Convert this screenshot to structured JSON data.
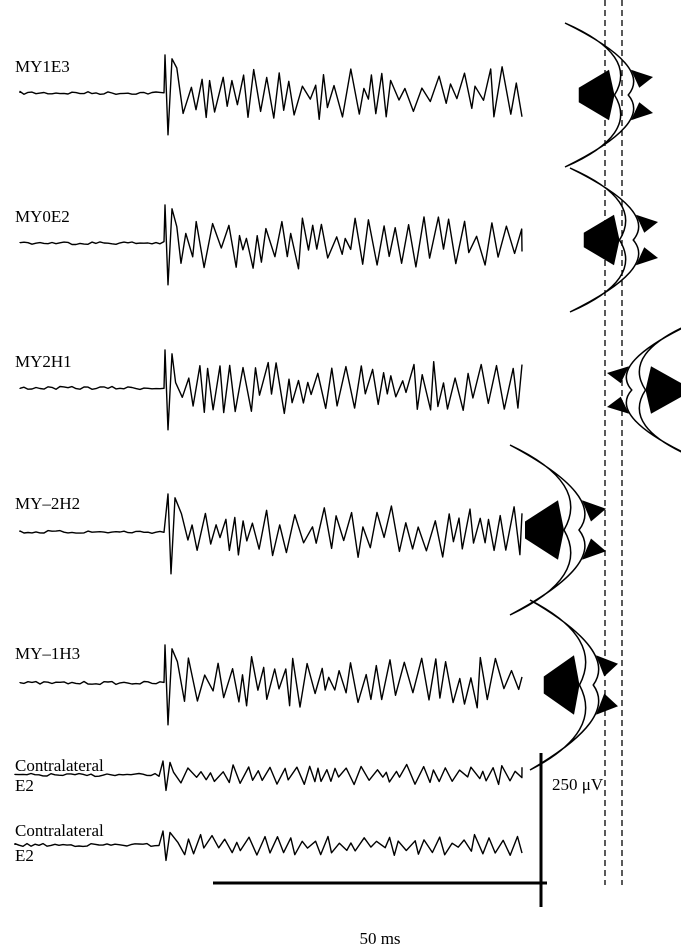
{
  "traces": [
    {
      "label": "MY1E3"
    },
    {
      "label": "MY0E2"
    },
    {
      "label": "MY2H1"
    },
    {
      "label": "MY–2H2"
    },
    {
      "label": "MY–1H3"
    }
  ],
  "contralateral": [
    {
      "line1": "Contralateral",
      "line2": "E2"
    },
    {
      "line1": "Contralateral",
      "line2": "E2"
    }
  ],
  "scale": {
    "amplitude": "250 μV",
    "time": "50 ms"
  }
}
